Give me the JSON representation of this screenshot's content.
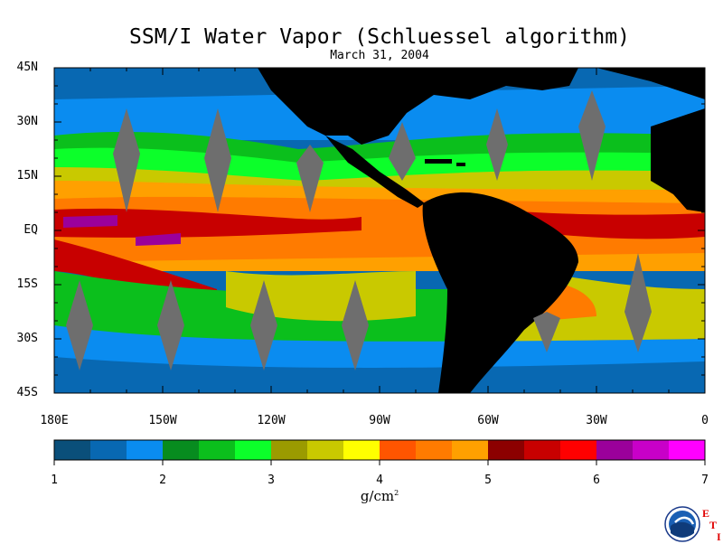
{
  "title": "SSM/I Water Vapor (Schluessel algorithm)",
  "date": "March 31, 2004",
  "latitude_labels": [
    "45N",
    "30N",
    "15N",
    "EQ",
    "15S",
    "30S",
    "45S"
  ],
  "longitude_labels": [
    "180E",
    "150W",
    "120W",
    "90W",
    "60W",
    "30W",
    "0"
  ],
  "colorbar": {
    "ticks": [
      "1",
      "2",
      "3",
      "4",
      "5",
      "6",
      "7"
    ],
    "units_base": "g/cm",
    "units_exp": "2",
    "colors": [
      "#0a4f7a",
      "#0868b2",
      "#0a8cf0",
      "#078c1f",
      "#0bbf1c",
      "#0cff2a",
      "#9b9b00",
      "#c9c900",
      "#ffff00",
      "#ff5500",
      "#ff7b00",
      "#ffa000",
      "#8c0000",
      "#c80000",
      "#ff0000",
      "#9b009b",
      "#c800c8",
      "#ff00ff"
    ]
  },
  "logo": {
    "name": "NOAA",
    "letters": [
      "E",
      "T",
      "I"
    ]
  },
  "colors": {
    "land": "#000000",
    "mask": "#6e6e6e",
    "background": "#ffffff"
  }
}
